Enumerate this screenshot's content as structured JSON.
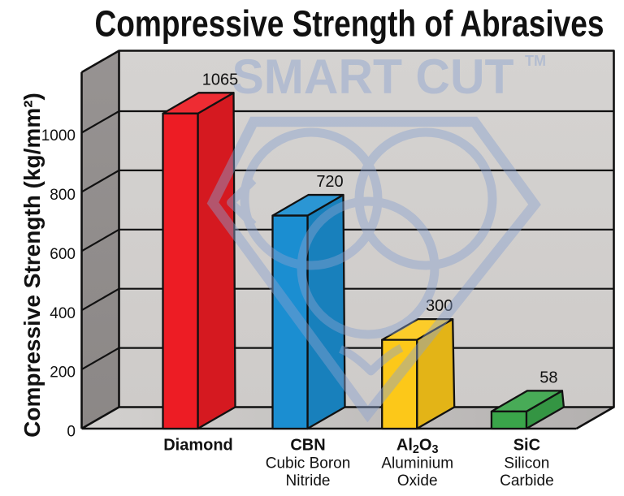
{
  "chart_data": {
    "type": "bar",
    "style": "3d-perspective-box",
    "title": "Compressive Strength of Abrasives",
    "ylabel": "Compressive Strength (kg/mm²)",
    "xlabel": "",
    "categories": [
      "Diamond",
      "CBN",
      "Al₂O₃",
      "SiC"
    ],
    "category_sublabels": [
      [],
      [
        "Cubic Boron",
        "Nitride"
      ],
      [
        "Aluminium",
        "Oxide"
      ],
      [
        "Silicon",
        "Carbide"
      ]
    ],
    "values": [
      1065,
      720,
      300,
      58
    ],
    "bar_colors": [
      "#ed1c24",
      "#1b8ed1",
      "#fcc819",
      "#3aa54a"
    ],
    "yticks": [
      0,
      200,
      400,
      600,
      800,
      1000
    ],
    "ylim": [
      0,
      1204
    ],
    "grid": true,
    "legend": false,
    "colors": {
      "back_wall": "#d2d0ce",
      "left_wall": "#918e8d",
      "floor": "#c8c6c4",
      "edge": "#111111",
      "background": "#ffffff",
      "text": "#111111"
    }
  },
  "watermark": {
    "text": "SMART CUT",
    "tm": "TM",
    "color": "#8aa2d0"
  }
}
